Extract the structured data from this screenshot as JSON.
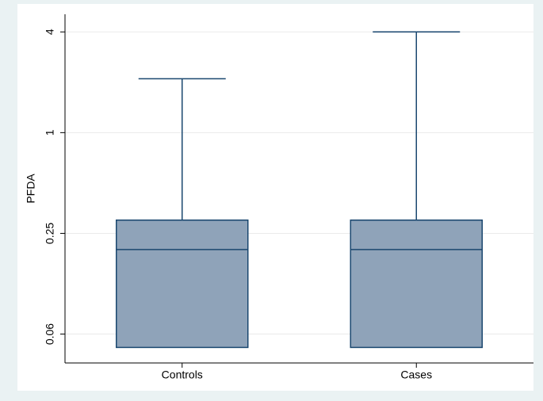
{
  "chart_data": {
    "type": "box",
    "y_label": "PFDA",
    "y_log": true,
    "categories": [
      "Controls",
      "Cases"
    ],
    "boxes": [
      {
        "low": 0.052,
        "q1": 0.052,
        "median": 0.2,
        "q3": 0.3,
        "high": 2.1
      },
      {
        "low": 0.052,
        "q1": 0.052,
        "median": 0.2,
        "q3": 0.3,
        "high": 4
      }
    ],
    "color": "#8fa3b9",
    "line_color": "#1a476f",
    "ylim": [
      0.042,
      5.1
    ],
    "yticks": [
      {
        "value": 0.0625,
        "label": "0.06"
      },
      0.25,
      1,
      4
    ],
    "grid": true
  }
}
